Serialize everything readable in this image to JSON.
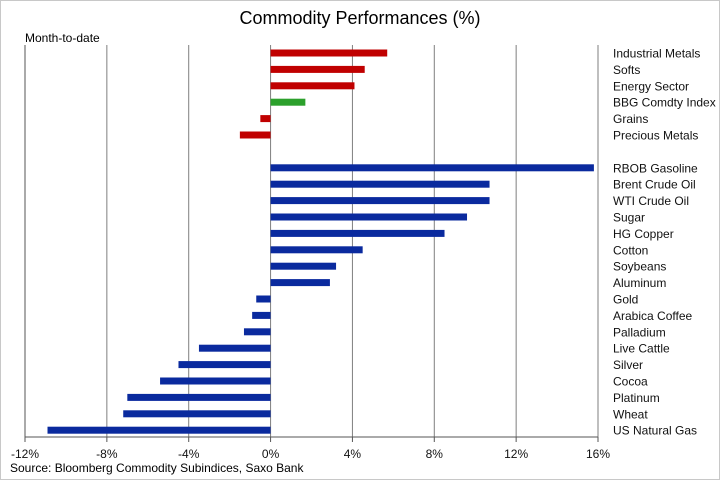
{
  "chart_data": {
    "type": "bar",
    "orientation": "horizontal",
    "title": "Commodity Performances (%)",
    "subtitle": "Month-to-date",
    "source": "Source: Bloomberg Commodity Subindices, Saxo Bank",
    "xlim": [
      -12,
      16
    ],
    "xticks": [
      -12,
      -8,
      -4,
      0,
      4,
      8,
      12,
      16
    ],
    "xtick_labels": [
      "-12%",
      "-8%",
      "-4%",
      "0%",
      "4%",
      "8%",
      "12%",
      "16%"
    ],
    "grid": "vertical",
    "colors": {
      "sector_positive": "#c00000",
      "index": "#2ca02c",
      "commodity": "#0a2a9e",
      "grid": "#7f7f7f",
      "axis": "#555555"
    },
    "groups": [
      {
        "categories": [
          "Industrial Metals",
          "Softs",
          "Energy Sector",
          "BBG Comdty Index",
          "Grains",
          "Precious Metals"
        ],
        "values": [
          5.7,
          4.6,
          4.1,
          1.7,
          -0.5,
          -1.5
        ],
        "bar_colors": [
          "#c00000",
          "#c00000",
          "#c00000",
          "#2ca02c",
          "#c00000",
          "#c00000"
        ]
      },
      {
        "categories": [
          "RBOB Gasoline",
          "Brent Crude Oil",
          "WTI Crude Oil",
          "Sugar",
          "HG Copper",
          "Cotton",
          "Soybeans",
          "Aluminum",
          "Gold",
          "Arabica Coffee",
          "Palladium",
          "Live Cattle",
          "Silver",
          "Cocoa",
          "Platinum",
          "Wheat",
          "US Natural Gas"
        ],
        "values": [
          15.8,
          10.7,
          10.7,
          9.6,
          8.5,
          4.5,
          3.2,
          2.9,
          -0.7,
          -0.9,
          -1.3,
          -3.5,
          -4.5,
          -5.4,
          -7.0,
          -7.2,
          -10.9
        ],
        "bar_colors": [
          "#0a2a9e",
          "#0a2a9e",
          "#0a2a9e",
          "#0a2a9e",
          "#0a2a9e",
          "#0a2a9e",
          "#0a2a9e",
          "#0a2a9e",
          "#0a2a9e",
          "#0a2a9e",
          "#0a2a9e",
          "#0a2a9e",
          "#0a2a9e",
          "#0a2a9e",
          "#0a2a9e",
          "#0a2a9e",
          "#0a2a9e"
        ]
      }
    ]
  }
}
